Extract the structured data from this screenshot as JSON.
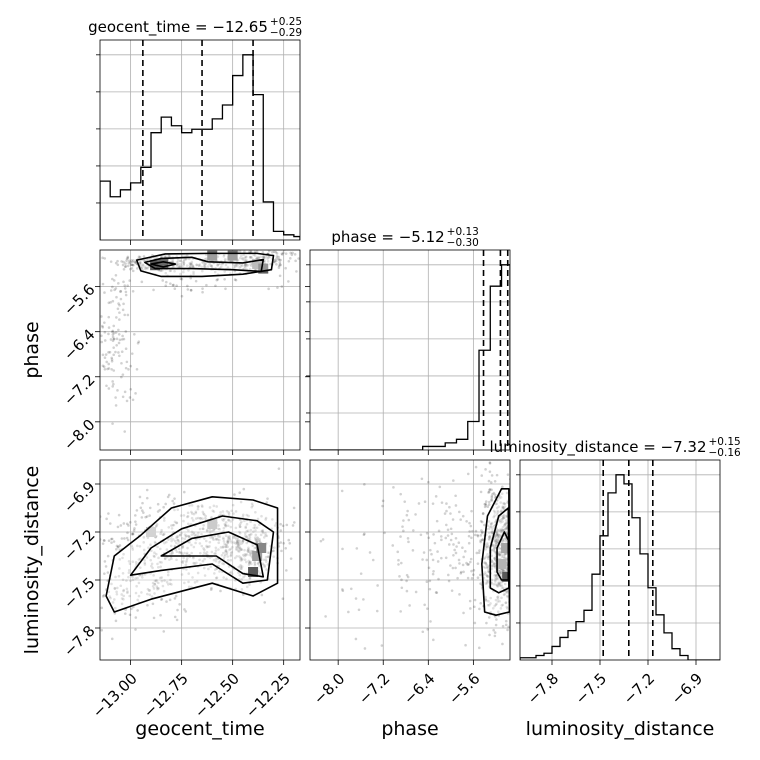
{
  "chart_data": {
    "type": "corner",
    "parameters": [
      {
        "name": "geocent_time",
        "title": "geocent_time = −12.65",
        "title_sup": "+0.25",
        "title_sub": "−0.29",
        "axis_label": "geocent_time",
        "range": [
          -13.15,
          -12.17
        ],
        "ticks": [
          "−13.00",
          "−12.75",
          "−12.50",
          "−12.25"
        ],
        "tick_values": [
          -13.0,
          -12.75,
          -12.5,
          -12.25
        ],
        "quantiles": [
          -12.94,
          -12.65,
          -12.4
        ],
        "hist_edges": [
          -13.15,
          -13.1,
          -13.05,
          -13.0,
          -12.95,
          -12.9,
          -12.85,
          -12.8,
          -12.75,
          -12.7,
          -12.65,
          -12.6,
          -12.55,
          -12.5,
          -12.45,
          -12.4,
          -12.35,
          -12.3,
          -12.25,
          -12.2,
          -12.17
        ],
        "hist_counts": [
          0.34,
          0.25,
          0.29,
          0.33,
          0.42,
          0.62,
          0.71,
          0.66,
          0.62,
          0.64,
          0.64,
          0.7,
          0.78,
          0.95,
          1.07,
          0.84,
          0.22,
          0.05,
          0.03,
          0.02
        ]
      },
      {
        "name": "phase",
        "title": "phase = −5.12",
        "title_sup": "+0.13",
        "title_sub": "−0.30",
        "axis_label": "phase",
        "range": [
          -8.5,
          -4.95
        ],
        "ticks": [
          "−8.0",
          "−7.2",
          "−6.4",
          "−5.6"
        ],
        "tick_values": [
          -8.0,
          -7.2,
          -6.4,
          -5.6
        ],
        "quantiles": [
          -5.42,
          -5.12,
          -4.99
        ],
        "hist_edges": [
          -8.5,
          -8.3,
          -8.1,
          -7.9,
          -7.7,
          -7.5,
          -7.3,
          -7.1,
          -6.9,
          -6.7,
          -6.5,
          -6.3,
          -6.1,
          -5.9,
          -5.7,
          -5.5,
          -5.3,
          -5.1,
          -4.95
        ],
        "hist_counts": [
          0.0,
          0.0,
          0.0,
          0.0,
          0.0,
          0.0,
          0.0,
          0.0,
          0.0,
          0.0,
          0.01,
          0.01,
          0.02,
          0.03,
          0.08,
          0.28,
          0.46,
          0.52
        ]
      },
      {
        "name": "luminosity_distance",
        "title": "luminosity_distance = −7.32",
        "title_sup": "+0.15",
        "title_sub": "−0.16",
        "axis_label": "luminosity_distance",
        "range": [
          -8.0,
          -6.75
        ],
        "ticks": [
          "−7.8",
          "−7.5",
          "−7.2",
          "−6.9"
        ],
        "tick_values": [
          -7.8,
          -7.5,
          -7.2,
          -6.9
        ],
        "quantiles": [
          -7.48,
          -7.32,
          -7.17
        ],
        "hist_edges": [
          -8.0,
          -7.95,
          -7.9,
          -7.85,
          -7.8,
          -7.75,
          -7.7,
          -7.65,
          -7.6,
          -7.55,
          -7.5,
          -7.45,
          -7.4,
          -7.35,
          -7.3,
          -7.25,
          -7.2,
          -7.15,
          -7.1,
          -7.05,
          -7.0,
          -6.95,
          -6.9,
          -6.85,
          -6.75
        ],
        "hist_counts": [
          0.01,
          0.01,
          0.02,
          0.03,
          0.06,
          0.1,
          0.13,
          0.17,
          0.22,
          0.38,
          0.55,
          0.74,
          0.82,
          0.78,
          0.63,
          0.47,
          0.32,
          0.2,
          0.12,
          0.05,
          0.02,
          0.0,
          0.0,
          0.0
        ]
      }
    ],
    "pairs": [
      {
        "x": "geocent_time",
        "y": "phase",
        "core": [
          {
            "x": -12.88,
            "y": -5.18,
            "sx": 0.1,
            "sy": 0.08,
            "n": 190
          },
          {
            "x": -12.6,
            "y": -5.2,
            "sx": 0.14,
            "sy": 0.09,
            "n": 190
          },
          {
            "x": -12.35,
            "y": -5.12,
            "sx": 0.09,
            "sy": 0.1,
            "n": 130
          },
          {
            "x": -12.75,
            "y": -5.55,
            "sx": 0.25,
            "sy": 0.08,
            "n": 50
          },
          {
            "x": -13.08,
            "y": -6.5,
            "sx": 0.04,
            "sy": 0.55,
            "n": 110
          },
          {
            "x": -13.03,
            "y": -7.7,
            "sx": 0.03,
            "sy": 0.4,
            "n": 10
          }
        ],
        "density_cells": [
          {
            "x": -12.88,
            "y": -5.22,
            "v": 1.0
          },
          {
            "x": -12.84,
            "y": -5.2,
            "v": 0.9
          },
          {
            "x": -12.6,
            "y": -5.05,
            "v": 0.55
          },
          {
            "x": -12.5,
            "y": -5.05,
            "v": 0.55
          },
          {
            "x": -12.38,
            "y": -5.2,
            "v": 0.35
          },
          {
            "x": -12.35,
            "y": -5.28,
            "v": 0.6
          }
        ],
        "contours": [
          [
            [
              -12.97,
              -5.13
            ],
            [
              -12.83,
              -5.02
            ],
            [
              -12.62,
              -5.01
            ],
            [
              -12.38,
              -5.01
            ],
            [
              -12.3,
              -5.05
            ],
            [
              -12.31,
              -5.3
            ],
            [
              -12.45,
              -5.38
            ],
            [
              -12.65,
              -5.42
            ],
            [
              -12.85,
              -5.42
            ],
            [
              -12.95,
              -5.32
            ],
            [
              -12.97,
              -5.13
            ]
          ],
          [
            [
              -12.93,
              -5.17
            ],
            [
              -12.85,
              -5.1
            ],
            [
              -12.7,
              -5.08
            ],
            [
              -12.62,
              -5.16
            ],
            [
              -12.45,
              -5.18
            ],
            [
              -12.35,
              -5.12
            ],
            [
              -12.36,
              -5.33
            ],
            [
              -12.5,
              -5.3
            ],
            [
              -12.7,
              -5.28
            ],
            [
              -12.88,
              -5.28
            ],
            [
              -12.93,
              -5.17
            ]
          ],
          [
            [
              -12.9,
              -5.2
            ],
            [
              -12.84,
              -5.16
            ],
            [
              -12.78,
              -5.2
            ],
            [
              -12.84,
              -5.25
            ],
            [
              -12.9,
              -5.2
            ]
          ]
        ]
      },
      {
        "x": "geocent_time",
        "y": "luminosity_distance",
        "core": [
          {
            "x": -12.67,
            "y": -7.25,
            "sx": 0.24,
            "sy": 0.13,
            "n": 600
          },
          {
            "x": -12.42,
            "y": -7.3,
            "sx": 0.08,
            "sy": 0.11,
            "n": 200
          },
          {
            "x": -12.95,
            "y": -7.55,
            "sx": 0.12,
            "sy": 0.12,
            "n": 150
          }
        ],
        "density_cells": [
          {
            "x": -12.9,
            "y": -7.2,
            "v": 0.2
          },
          {
            "x": -12.6,
            "y": -7.15,
            "v": 0.25
          },
          {
            "x": -12.38,
            "y": -7.35,
            "v": 0.55
          },
          {
            "x": -12.4,
            "y": -7.45,
            "v": 1.0
          },
          {
            "x": -12.36,
            "y": -7.3,
            "v": 0.7
          }
        ],
        "contours": [
          [
            [
              -13.12,
              -7.6
            ],
            [
              -13.08,
              -7.35
            ],
            [
              -12.95,
              -7.22
            ],
            [
              -12.8,
              -7.05
            ],
            [
              -12.6,
              -6.98
            ],
            [
              -12.4,
              -7.0
            ],
            [
              -12.28,
              -7.05
            ],
            [
              -12.28,
              -7.52
            ],
            [
              -12.4,
              -7.6
            ],
            [
              -12.6,
              -7.52
            ],
            [
              -12.9,
              -7.62
            ],
            [
              -13.08,
              -7.7
            ],
            [
              -13.12,
              -7.6
            ]
          ],
          [
            [
              -13.0,
              -7.47
            ],
            [
              -12.9,
              -7.3
            ],
            [
              -12.75,
              -7.18
            ],
            [
              -12.55,
              -7.1
            ],
            [
              -12.38,
              -7.13
            ],
            [
              -12.3,
              -7.2
            ],
            [
              -12.33,
              -7.5
            ],
            [
              -12.45,
              -7.52
            ],
            [
              -12.6,
              -7.4
            ],
            [
              -12.85,
              -7.44
            ],
            [
              -13.0,
              -7.47
            ]
          ],
          [
            [
              -12.85,
              -7.35
            ],
            [
              -12.7,
              -7.24
            ],
            [
              -12.52,
              -7.2
            ],
            [
              -12.38,
              -7.28
            ],
            [
              -12.35,
              -7.48
            ],
            [
              -12.45,
              -7.46
            ],
            [
              -12.58,
              -7.35
            ],
            [
              -12.85,
              -7.35
            ]
          ]
        ]
      },
      {
        "x": "phase",
        "y": "luminosity_distance",
        "core": [
          {
            "x": -5.1,
            "y": -7.32,
            "sx": 0.18,
            "sy": 0.2,
            "n": 700
          },
          {
            "x": -5.8,
            "y": -7.3,
            "sx": 0.8,
            "sy": 0.25,
            "n": 200
          },
          {
            "x": -7.2,
            "y": -7.4,
            "sx": 0.9,
            "sy": 0.35,
            "n": 50
          }
        ],
        "density_cells": [
          {
            "x": -5.02,
            "y": -7.3,
            "v": 0.5
          },
          {
            "x": -5.0,
            "y": -7.48,
            "v": 1.0
          },
          {
            "x": -5.1,
            "y": -7.4,
            "v": 0.4
          }
        ],
        "contours": [
          [
            [
              -5.4,
              -7.7
            ],
            [
              -5.45,
              -7.4
            ],
            [
              -5.35,
              -7.1
            ],
            [
              -5.1,
              -6.93
            ],
            [
              -4.97,
              -6.93
            ],
            [
              -4.96,
              -7.7
            ],
            [
              -5.2,
              -7.72
            ],
            [
              -5.4,
              -7.7
            ]
          ],
          [
            [
              -5.3,
              -7.55
            ],
            [
              -5.3,
              -7.3
            ],
            [
              -5.15,
              -7.1
            ],
            [
              -4.98,
              -7.05
            ],
            [
              -4.97,
              -7.55
            ],
            [
              -5.15,
              -7.58
            ],
            [
              -5.3,
              -7.55
            ]
          ],
          [
            [
              -5.18,
              -7.45
            ],
            [
              -5.18,
              -7.3
            ],
            [
              -5.05,
              -7.2
            ],
            [
              -4.98,
              -7.25
            ],
            [
              -4.98,
              -7.5
            ],
            [
              -5.1,
              -7.5
            ],
            [
              -5.18,
              -7.45
            ]
          ]
        ]
      }
    ],
    "grid": true
  }
}
